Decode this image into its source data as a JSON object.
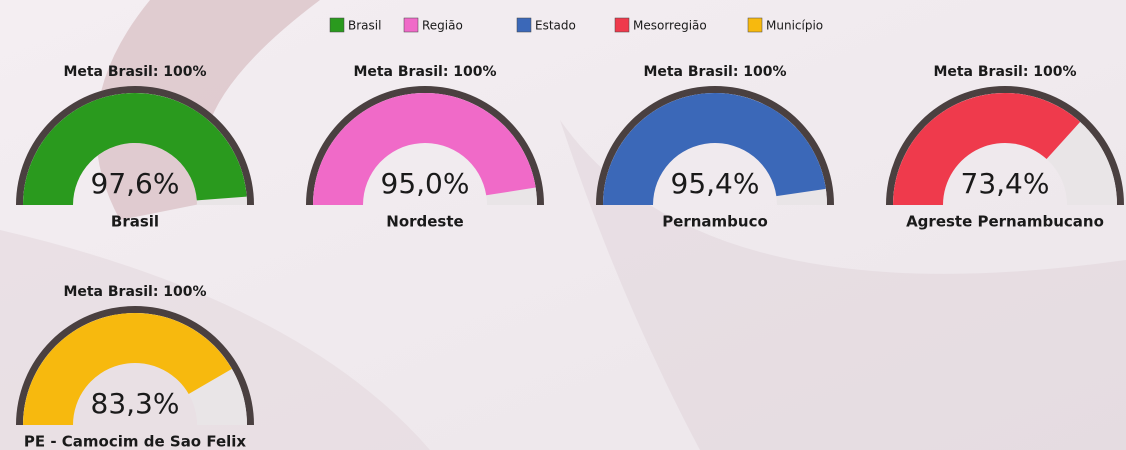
{
  "legend": [
    {
      "name": "Brasil",
      "color": "#2a9a1e"
    },
    {
      "name": "Região",
      "color": "#f06ac8"
    },
    {
      "name": "Estado",
      "color": "#3b68b8"
    },
    {
      "name": "Mesorregião",
      "color": "#ef3a4c"
    },
    {
      "name": "Município",
      "color": "#f7b90e"
    }
  ],
  "chart_data": [
    {
      "type": "gauge",
      "title": "Meta Brasil: 100%",
      "categories": [
        "Brasil"
      ],
      "values": [
        97.6
      ],
      "value_labels": [
        "97,6%"
      ],
      "color": "#2a9a1e",
      "ylim": [
        0,
        100
      ]
    },
    {
      "type": "gauge",
      "title": "Meta Brasil: 100%",
      "categories": [
        "Nordeste"
      ],
      "values": [
        95.0
      ],
      "value_labels": [
        "95,0%"
      ],
      "color": "#f06ac8",
      "ylim": [
        0,
        100
      ]
    },
    {
      "type": "gauge",
      "title": "Meta Brasil: 100%",
      "categories": [
        "Pernambuco"
      ],
      "values": [
        95.4
      ],
      "value_labels": [
        "95,4%"
      ],
      "color": "#3b68b8",
      "ylim": [
        0,
        100
      ]
    },
    {
      "type": "gauge",
      "title": "Meta Brasil: 100%",
      "categories": [
        "Agreste Pernambucano"
      ],
      "values": [
        73.4
      ],
      "value_labels": [
        "73,4%"
      ],
      "color": "#ef3a4c",
      "ylim": [
        0,
        100
      ]
    },
    {
      "type": "gauge",
      "title": "Meta Brasil: 100%",
      "categories": [
        "PE - Camocim de Sao Felix"
      ],
      "values": [
        83.3
      ],
      "value_labels": [
        "83,3%"
      ],
      "color": "#f7b90e",
      "ylim": [
        0,
        100
      ]
    }
  ]
}
